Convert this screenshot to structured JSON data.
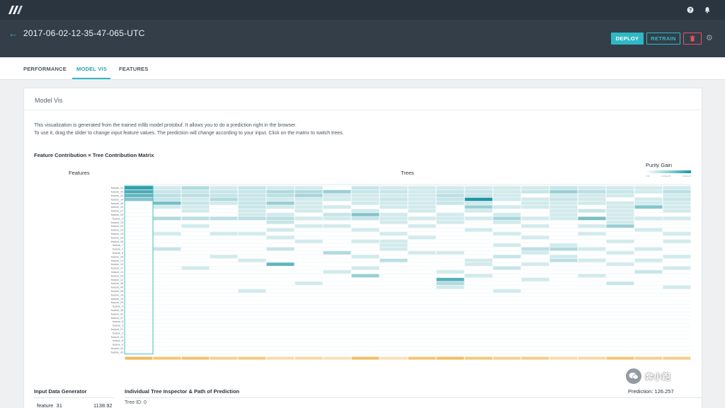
{
  "topbar": {
    "help_icon": "help-circle-icon",
    "bell_icon": "bell-icon"
  },
  "header": {
    "run_title": "2017-06-02-12-35-47-065-UTC",
    "back_symbol": "←",
    "deploy_label": "DEPLOY",
    "retrain_label": "RETRAIN",
    "delete_symbol": "🗑",
    "gear_symbol": "⚙"
  },
  "tabs": [
    {
      "label": "PERFORMANCE"
    },
    {
      "label": "MODEL VIS"
    },
    {
      "label": "FEATURES"
    }
  ],
  "panel": {
    "title": "Model Vis",
    "description_line1": "This visualization is generated from the trained mllib model protobuf. It allows you to do a prediction right in the browser.",
    "description_line2": "To use it, drag the slider to change input feature values. The prediction will change according to your input. Click on the matrix to switch trees.",
    "matrix_title": "Feature Contribution × Tree Contribution Matrix",
    "features_label": "Features",
    "trees_label": "Trees",
    "purity_gain_label": "Purity Gain",
    "purity_ticks": [
      "0.00",
      "1.00E+05",
      "2.00E+05"
    ]
  },
  "colors": {
    "accent": "#2fb8c5",
    "danger": "#e4535f",
    "header_bg": "#333e49",
    "topbar_bg": "#2b3540",
    "prediction_row": "#f5c87a"
  },
  "chart_data": {
    "type": "heatmap",
    "title": "Feature Contribution × Tree Contribution Matrix",
    "xlabel": "Trees",
    "ylabel": "Features",
    "legend": "Purity Gain",
    "legend_ticks": [
      "0.00",
      "1.00E+05",
      "2.00E+05"
    ],
    "num_trees": 20,
    "selected_tree": 0,
    "feature_names": [
      "feature_31",
      "feature_30",
      "feature_33",
      "feature_14",
      "feature_35",
      "feature_22",
      "feature_27",
      "feature_20",
      "feature_9",
      "feature_15",
      "feature_23",
      "feature_24",
      "feature_18",
      "feature_26",
      "feature_36",
      "feature_7",
      "feature_1",
      "feature_8",
      "feature_34",
      "feature_13",
      "feature_10",
      "feature_17",
      "feature_11",
      "feature_25",
      "feature_12",
      "feature_39",
      "feature_40",
      "feature_28",
      "feature_16",
      "feature_19",
      "feature_29",
      "feature_4",
      "feature_38",
      "feature_32",
      "feature_37",
      "feature_5",
      "feature_3",
      "feature_21",
      "feature_2",
      "feature_41",
      "feature_6",
      "feature_0",
      "feature_42",
      "feature_43"
    ],
    "cells": [
      [
        0,
        0,
        0.9
      ],
      [
        0,
        1,
        0.2
      ],
      [
        0,
        2,
        0.35
      ],
      [
        0,
        3,
        0.2
      ],
      [
        0,
        4,
        0.25
      ],
      [
        0,
        5,
        0.2
      ],
      [
        0,
        6,
        0.2
      ],
      [
        0,
        8,
        0.25
      ],
      [
        0,
        9,
        0.2
      ],
      [
        0,
        10,
        0.2
      ],
      [
        0,
        11,
        0.2
      ],
      [
        0,
        12,
        0.2
      ],
      [
        0,
        13,
        0.2
      ],
      [
        0,
        14,
        0.2
      ],
      [
        0,
        15,
        0.25
      ],
      [
        0,
        16,
        0.2
      ],
      [
        0,
        17,
        0.2
      ],
      [
        0,
        18,
        0.2
      ],
      [
        0,
        19,
        0.2
      ],
      [
        1,
        0,
        0.8
      ],
      [
        1,
        1,
        0.25
      ],
      [
        1,
        2,
        0.25
      ],
      [
        1,
        3,
        0.25
      ],
      [
        1,
        4,
        0.25
      ],
      [
        1,
        5,
        0.35
      ],
      [
        1,
        6,
        0.35
      ],
      [
        1,
        7,
        0.45
      ],
      [
        1,
        8,
        0.25
      ],
      [
        1,
        9,
        0.25
      ],
      [
        1,
        10,
        0.2
      ],
      [
        1,
        11,
        0.25
      ],
      [
        1,
        12,
        0.25
      ],
      [
        1,
        13,
        0.2
      ],
      [
        1,
        14,
        0.25
      ],
      [
        1,
        15,
        0.45
      ],
      [
        1,
        16,
        0.3
      ],
      [
        1,
        17,
        0.25
      ],
      [
        1,
        18,
        0.2
      ],
      [
        1,
        19,
        0.3
      ],
      [
        2,
        0,
        0.7
      ],
      [
        2,
        1,
        0.3
      ],
      [
        2,
        2,
        0.3
      ],
      [
        2,
        3,
        0.25
      ],
      [
        2,
        4,
        0.25
      ],
      [
        2,
        5,
        0.3
      ],
      [
        2,
        6,
        0.4
      ],
      [
        2,
        7,
        0.2
      ],
      [
        2,
        8,
        0.2
      ],
      [
        2,
        9,
        0.2
      ],
      [
        2,
        10,
        0.2
      ],
      [
        2,
        11,
        0.3
      ],
      [
        2,
        12,
        0.25
      ],
      [
        2,
        13,
        0.2
      ],
      [
        2,
        15,
        0.2
      ],
      [
        2,
        16,
        0.2
      ],
      [
        2,
        17,
        0.2
      ],
      [
        2,
        19,
        0.2
      ],
      [
        3,
        0,
        0.55
      ],
      [
        3,
        1,
        0.25
      ],
      [
        3,
        2,
        0.2
      ],
      [
        3,
        3,
        0.35
      ],
      [
        3,
        4,
        0.25
      ],
      [
        3,
        5,
        0.2
      ],
      [
        3,
        6,
        0.2
      ],
      [
        3,
        7,
        0.2
      ],
      [
        3,
        8,
        0.2
      ],
      [
        3,
        9,
        0.25
      ],
      [
        3,
        10,
        0.2
      ],
      [
        3,
        11,
        0.25
      ],
      [
        3,
        12,
        1.0
      ],
      [
        3,
        13,
        0.2
      ],
      [
        3,
        14,
        0.2
      ],
      [
        3,
        15,
        0.25
      ],
      [
        3,
        16,
        0.2
      ],
      [
        3,
        18,
        0.2
      ],
      [
        3,
        19,
        0.25
      ],
      [
        4,
        1,
        0.6
      ],
      [
        4,
        2,
        0.25
      ],
      [
        4,
        3,
        0.2
      ],
      [
        4,
        4,
        0.25
      ],
      [
        4,
        5,
        0.45
      ],
      [
        4,
        6,
        0.2
      ],
      [
        4,
        8,
        0.2
      ],
      [
        4,
        9,
        0.2
      ],
      [
        4,
        10,
        0.2
      ],
      [
        4,
        11,
        0.25
      ],
      [
        4,
        12,
        0.2
      ],
      [
        4,
        14,
        0.2
      ],
      [
        4,
        15,
        0.2
      ],
      [
        4,
        16,
        0.2
      ],
      [
        4,
        17,
        0.2
      ],
      [
        4,
        18,
        0.2
      ],
      [
        4,
        19,
        0.2
      ],
      [
        5,
        1,
        0.2
      ],
      [
        5,
        2,
        0.2
      ],
      [
        5,
        4,
        0.25
      ],
      [
        5,
        5,
        0.2
      ],
      [
        5,
        6,
        0.2
      ],
      [
        5,
        7,
        0.2
      ],
      [
        5,
        9,
        0.2
      ],
      [
        5,
        10,
        0.2
      ],
      [
        5,
        12,
        0.45
      ],
      [
        5,
        13,
        0.2
      ],
      [
        5,
        14,
        0.2
      ],
      [
        5,
        15,
        0.2
      ],
      [
        5,
        17,
        0.2
      ],
      [
        5,
        18,
        0.55
      ],
      [
        5,
        19,
        0.2
      ],
      [
        6,
        2,
        0.2
      ],
      [
        6,
        4,
        0.2
      ],
      [
        6,
        6,
        0.2
      ],
      [
        6,
        8,
        0.2
      ],
      [
        6,
        10,
        0.2
      ],
      [
        6,
        12,
        0.2
      ],
      [
        6,
        15,
        0.2
      ],
      [
        6,
        16,
        0.25
      ],
      [
        6,
        17,
        0.2
      ],
      [
        6,
        19,
        0.2
      ],
      [
        7,
        4,
        0.2
      ],
      [
        7,
        5,
        0.2
      ],
      [
        7,
        7,
        0.25
      ],
      [
        7,
        8,
        0.55
      ],
      [
        7,
        9,
        0.2
      ],
      [
        7,
        11,
        0.2
      ],
      [
        7,
        13,
        0.2
      ],
      [
        7,
        15,
        0.2
      ],
      [
        7,
        17,
        0.2
      ],
      [
        8,
        1,
        0.35
      ],
      [
        8,
        2,
        0.3
      ],
      [
        8,
        3,
        0.3
      ],
      [
        8,
        4,
        0.3
      ],
      [
        8,
        5,
        0.3
      ],
      [
        8,
        6,
        0.2
      ],
      [
        8,
        7,
        0.2
      ],
      [
        8,
        8,
        0.25
      ],
      [
        8,
        9,
        0.2
      ],
      [
        8,
        10,
        0.2
      ],
      [
        8,
        11,
        0.2
      ],
      [
        8,
        12,
        0.2
      ],
      [
        8,
        13,
        0.4
      ],
      [
        8,
        14,
        0.2
      ],
      [
        8,
        15,
        0.2
      ],
      [
        8,
        16,
        0.6
      ],
      [
        8,
        17,
        0.2
      ],
      [
        8,
        18,
        0.2
      ],
      [
        8,
        19,
        0.2
      ],
      [
        9,
        5,
        0.25
      ],
      [
        9,
        9,
        0.2
      ],
      [
        9,
        11,
        0.2
      ],
      [
        9,
        13,
        0.2
      ],
      [
        9,
        17,
        0.2
      ],
      [
        10,
        2,
        0.2
      ],
      [
        10,
        6,
        0.2
      ],
      [
        10,
        7,
        0.2
      ],
      [
        10,
        10,
        0.2
      ],
      [
        10,
        14,
        0.2
      ],
      [
        10,
        16,
        0.2
      ],
      [
        10,
        17,
        0.45
      ],
      [
        11,
        5,
        0.2
      ],
      [
        11,
        8,
        0.2
      ],
      [
        11,
        12,
        0.2
      ],
      [
        11,
        18,
        0.2
      ],
      [
        12,
        1,
        0.2
      ],
      [
        12,
        3,
        0.2
      ],
      [
        12,
        4,
        0.2
      ],
      [
        12,
        9,
        0.2
      ],
      [
        12,
        13,
        0.2
      ],
      [
        12,
        16,
        0.2
      ],
      [
        12,
        19,
        0.2
      ],
      [
        13,
        5,
        0.2
      ],
      [
        13,
        10,
        0.2
      ],
      [
        13,
        14,
        0.2
      ],
      [
        14,
        6,
        0.2
      ],
      [
        14,
        8,
        0.2
      ],
      [
        14,
        9,
        0.2
      ],
      [
        14,
        17,
        0.2
      ],
      [
        14,
        19,
        0.2
      ],
      [
        15,
        9,
        0.2
      ],
      [
        15,
        13,
        0.2
      ],
      [
        15,
        15,
        0.2
      ],
      [
        16,
        1,
        0.25
      ],
      [
        16,
        5,
        0.25
      ],
      [
        16,
        9,
        0.2
      ],
      [
        16,
        14,
        0.3
      ],
      [
        16,
        15,
        0.35
      ],
      [
        16,
        16,
        0.2
      ],
      [
        16,
        18,
        0.2
      ],
      [
        17,
        7,
        0.35
      ],
      [
        17,
        10,
        0.2
      ],
      [
        17,
        11,
        0.2
      ],
      [
        17,
        14,
        0.2
      ],
      [
        17,
        17,
        0.2
      ],
      [
        18,
        3,
        0.2
      ],
      [
        18,
        8,
        0.2
      ],
      [
        18,
        13,
        0.25
      ],
      [
        18,
        15,
        0.2
      ],
      [
        18,
        19,
        0.2
      ],
      [
        19,
        4,
        0.2
      ],
      [
        19,
        9,
        0.3
      ],
      [
        19,
        12,
        0.2
      ],
      [
        19,
        15,
        0.3
      ],
      [
        19,
        16,
        0.2
      ],
      [
        19,
        18,
        0.2
      ],
      [
        20,
        5,
        0.7
      ],
      [
        20,
        12,
        0.2
      ],
      [
        20,
        14,
        0.2
      ],
      [
        20,
        17,
        0.2
      ],
      [
        21,
        2,
        0.2
      ],
      [
        21,
        8,
        0.2
      ],
      [
        21,
        13,
        0.25
      ],
      [
        21,
        19,
        0.2
      ],
      [
        22,
        7,
        0.2
      ],
      [
        22,
        11,
        0.2
      ],
      [
        22,
        18,
        0.25
      ],
      [
        23,
        8,
        0.45
      ],
      [
        23,
        12,
        0.2
      ],
      [
        23,
        16,
        0.2
      ],
      [
        24,
        11,
        0.75
      ],
      [
        24,
        14,
        0.2
      ],
      [
        25,
        6,
        0.2
      ],
      [
        25,
        11,
        0.35
      ],
      [
        25,
        17,
        0.25
      ],
      [
        26,
        11,
        0.2
      ],
      [
        26,
        19,
        0.2
      ],
      [
        27,
        4,
        0.2
      ],
      [
        27,
        13,
        0.2
      ]
    ],
    "prediction_row_values": [
      0.9,
      0.7,
      0.75,
      0.5,
      0.6,
      0.3,
      0.35,
      0.2,
      0.8,
      0.2,
      0.7,
      0.8,
      0.65,
      0.5,
      0.55,
      0.3,
      0.35,
      0.7,
      0.5,
      0.55
    ]
  },
  "inspector": {
    "input_title": "Input Data Generator",
    "feature_name": "feature_31",
    "feature_value": "1138.92",
    "tree_title": "Individual Tree Inspector & Path of Prediction",
    "tree_id": "Tree ID: 0",
    "prediction": "Prediction: 126.257"
  },
  "watermark": {
    "text": "奔小跑"
  }
}
